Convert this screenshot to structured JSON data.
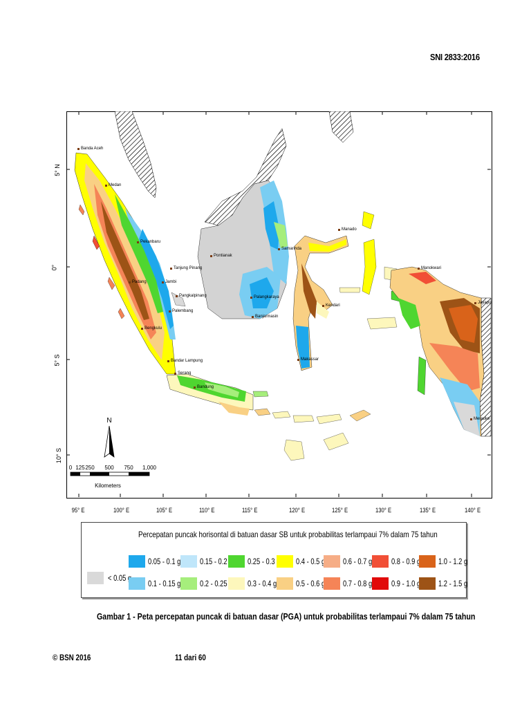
{
  "header": {
    "standard_code": "SNI 2833:2016"
  },
  "map": {
    "lon_ticks": [
      "95° E",
      "100° E",
      "105° E",
      "110° E",
      "115° E",
      "120° E",
      "125° E",
      "130° E",
      "135° E",
      "140° E"
    ],
    "lat_ticks": [
      "5° N",
      "0°",
      "5° S",
      "10° S"
    ],
    "north_label": "N",
    "scale_ticks": [
      "0",
      "125",
      "250",
      "500",
      "750",
      "1,000"
    ],
    "scale_unit": "Kilometers",
    "cities": [
      "Banda Aceh",
      "Medan",
      "Pekanbaru",
      "Padang",
      "Jambi",
      "Palembang",
      "Bengkulu",
      "Bandar Lampung",
      "Serang",
      "Bandung",
      "Pontianak",
      "Palangkaraya",
      "Banjarmasin",
      "Samarinda",
      "Manado",
      "Kendari",
      "Makassar",
      "Manokwari",
      "Jayapura",
      "Merauke",
      "Tanjung Pinang",
      "Pangkalpinang"
    ],
    "colors": {
      "land_grey": "#d3d3d3",
      "hatch": "#000000",
      "sea": "#ffffff"
    }
  },
  "legend": {
    "title": "Percepatan puncak horisontal di batuan dasar SB untuk probabilitas terlampaui 7% dalam 75 tahun",
    "items": [
      {
        "label": "< 0.05 g",
        "color": "#d9d9d9"
      },
      {
        "label": "0.05 - 0.1 g",
        "color": "#1ea8ec"
      },
      {
        "label": "0.1 - 0.15 g",
        "color": "#79cdf2"
      },
      {
        "label": "0.15 - 0.2 g",
        "color": "#bfe6fa"
      },
      {
        "label": "0.2 - 0.25 g",
        "color": "#a6ee7c"
      },
      {
        "label": "0.25 - 0.3 g",
        "color": "#4fd630"
      },
      {
        "label": "0.3 - 0.4 g",
        "color": "#fdf7bc"
      },
      {
        "label": "0.4 - 0.5 g",
        "color": "#ffff00"
      },
      {
        "label": "0.5 - 0.6 g",
        "color": "#f9d084"
      },
      {
        "label": "0.6 - 0.7 g",
        "color": "#f6ad86"
      },
      {
        "label": "0.7 - 0.8 g",
        "color": "#f58457"
      },
      {
        "label": "0.8 - 0.9 g",
        "color": "#f14f36"
      },
      {
        "label": "0.9 - 1.0 g",
        "color": "#e10a0a"
      },
      {
        "label": "1.0 - 1.2 g",
        "color": "#d9631a"
      },
      {
        "label": "1.2 - 1.5 g",
        "color": "#9d5316"
      }
    ]
  },
  "caption": "Gambar 1 - Peta percepatan puncak di batuan dasar (PGA) untuk probabilitas terlampaui 7% dalam 75 tahun",
  "footer": {
    "copyright": "© BSN 2016",
    "page": "11 dari 60"
  }
}
